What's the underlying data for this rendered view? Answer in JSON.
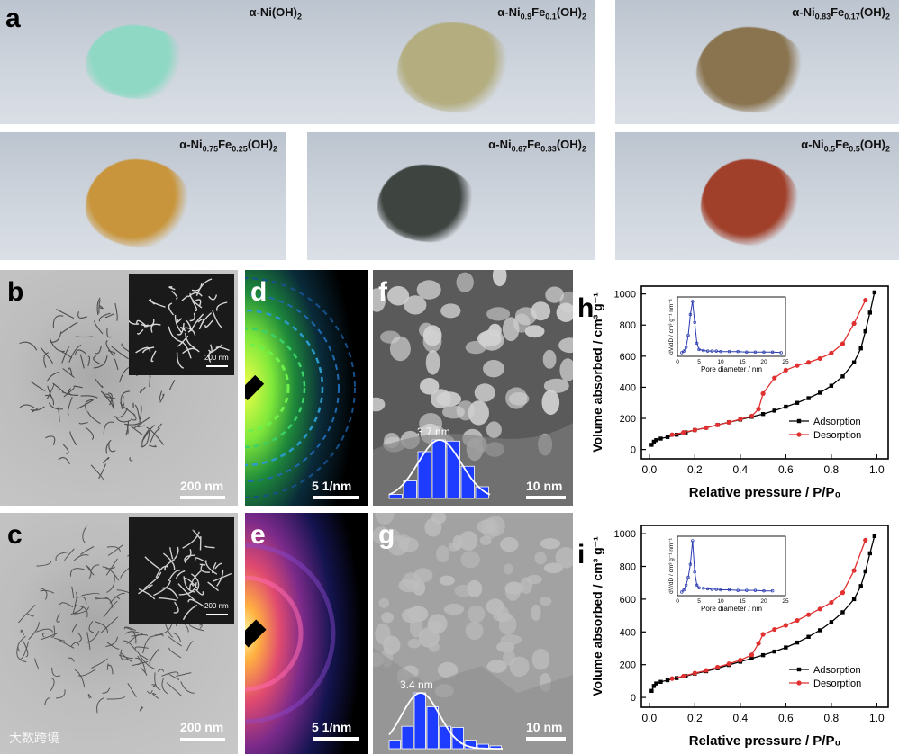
{
  "panel_a": {
    "label": "a",
    "samples": [
      {
        "formula_html": "α-Ni(OH)<sub>2</sub>",
        "color": "#8fd8c4"
      },
      {
        "formula_html": "α-Ni<sub>0.9</sub>Fe<sub>0.1</sub>(OH)<sub>2</sub>",
        "color": "#b3ad80"
      },
      {
        "formula_html": "α-Ni<sub>0.83</sub>Fe<sub>0.17</sub>(OH)<sub>2</sub>",
        "color": "#8a7450"
      },
      {
        "formula_html": "α-Ni<sub>0.75</sub>Fe<sub>0.25</sub>(OH)<sub>2</sub>",
        "color": "#c8953c"
      },
      {
        "formula_html": "α-Ni<sub>0.67</sub>Fe<sub>0.33</sub>(OH)<sub>2</sub>",
        "color": "#3e4440"
      },
      {
        "formula_html": "α-Ni<sub>0.5</sub>Fe<sub>0.5</sub>(OH)<sub>2</sub>",
        "color": "#a0402a"
      }
    ]
  },
  "panel_b": {
    "label": "b",
    "scale": "200 nm",
    "inset_scale": "200 nm"
  },
  "panel_c": {
    "label": "c",
    "scale": "200 nm",
    "inset_scale": "200 nm"
  },
  "panel_d": {
    "label": "d",
    "scale": "5 1/nm"
  },
  "panel_e": {
    "label": "e",
    "scale": "5 1/nm"
  },
  "panel_f": {
    "label": "f",
    "scale": "10 nm",
    "peak_label": "3.7 nm",
    "hist": [
      0.07,
      0.3,
      0.8,
      1.0,
      0.98,
      0.55,
      0.2
    ]
  },
  "panel_g": {
    "label": "g",
    "scale": "10 nm",
    "peak_label": "3.4 nm",
    "hist": [
      0.15,
      0.4,
      1.0,
      0.75,
      0.4,
      0.38,
      0.15,
      0.08,
      0.05
    ]
  },
  "watermark": "大数跨境",
  "chart_data": [
    {
      "panel": "h",
      "type": "line",
      "xlabel": "Relative pressure / P/P₀",
      "ylabel": "Volume absorbed / cm³ g⁻¹",
      "xlim": [
        0,
        1.0
      ],
      "ylim": [
        -60,
        1050
      ],
      "xticks": [
        "0.0",
        "0.2",
        "0.4",
        "0.6",
        "0.8",
        "1.0"
      ],
      "yticks": [
        "0",
        "200",
        "400",
        "600",
        "800",
        "1000"
      ],
      "legend_position": "bottom-right",
      "series": [
        {
          "name": "Adsorption",
          "color": "#000000",
          "x": [
            0.01,
            0.02,
            0.03,
            0.05,
            0.08,
            0.12,
            0.16,
            0.2,
            0.25,
            0.3,
            0.35,
            0.4,
            0.45,
            0.5,
            0.55,
            0.6,
            0.65,
            0.7,
            0.75,
            0.8,
            0.85,
            0.9,
            0.93,
            0.95,
            0.97,
            0.99
          ],
          "y": [
            30,
            50,
            60,
            70,
            80,
            95,
            110,
            125,
            140,
            158,
            175,
            192,
            210,
            228,
            250,
            275,
            300,
            330,
            365,
            410,
            470,
            560,
            650,
            760,
            880,
            1010
          ]
        },
        {
          "name": "Desorption",
          "color": "#e03030",
          "x": [
            0.1,
            0.15,
            0.2,
            0.25,
            0.3,
            0.35,
            0.4,
            0.45,
            0.48,
            0.5,
            0.55,
            0.6,
            0.65,
            0.7,
            0.75,
            0.8,
            0.85,
            0.9,
            0.95
          ],
          "y": [
            95,
            110,
            125,
            140,
            158,
            175,
            195,
            215,
            260,
            360,
            460,
            510,
            540,
            560,
            585,
            620,
            680,
            810,
            960
          ]
        }
      ],
      "inset": {
        "xlabel": "Pore diameter / nm",
        "ylabel": "dV/dD / cm³ g⁻¹ nm⁻¹",
        "xticks": [
          "0",
          "5",
          "10",
          "15",
          "20",
          "25"
        ],
        "x": [
          1,
          1.5,
          2,
          2.5,
          3,
          3.5,
          4,
          4.5,
          5,
          6,
          7,
          8,
          9,
          10,
          12,
          14,
          16,
          18,
          20,
          22,
          24
        ],
        "y": [
          0.02,
          0.05,
          0.12,
          0.35,
          0.75,
          1.0,
          0.6,
          0.2,
          0.08,
          0.06,
          0.05,
          0.05,
          0.05,
          0.04,
          0.04,
          0.04,
          0.03,
          0.03,
          0.03,
          0.03,
          0.02
        ]
      }
    },
    {
      "panel": "i",
      "type": "line",
      "xlabel": "Relative pressure / P/P₀",
      "ylabel": "Volume absorbed / cm³ g⁻¹",
      "xlim": [
        0,
        1.0
      ],
      "ylim": [
        -60,
        1050
      ],
      "xticks": [
        "0.0",
        "0.2",
        "0.4",
        "0.6",
        "0.8",
        "1.0"
      ],
      "yticks": [
        "0",
        "200",
        "400",
        "600",
        "800",
        "1000"
      ],
      "legend_position": "bottom-right",
      "series": [
        {
          "name": "Adsorption",
          "color": "#000000",
          "x": [
            0.01,
            0.02,
            0.03,
            0.05,
            0.08,
            0.12,
            0.16,
            0.2,
            0.25,
            0.3,
            0.35,
            0.4,
            0.45,
            0.5,
            0.55,
            0.6,
            0.65,
            0.7,
            0.75,
            0.8,
            0.85,
            0.9,
            0.93,
            0.95,
            0.97,
            0.99
          ],
          "y": [
            40,
            70,
            85,
            95,
            105,
            118,
            130,
            145,
            160,
            178,
            198,
            218,
            238,
            258,
            280,
            305,
            335,
            370,
            410,
            460,
            520,
            600,
            680,
            770,
            880,
            985
          ]
        },
        {
          "name": "Desorption",
          "color": "#e03030",
          "x": [
            0.1,
            0.15,
            0.2,
            0.25,
            0.3,
            0.35,
            0.4,
            0.45,
            0.48,
            0.5,
            0.55,
            0.6,
            0.65,
            0.7,
            0.75,
            0.8,
            0.85,
            0.9,
            0.95
          ],
          "y": [
            115,
            130,
            148,
            165,
            185,
            205,
            228,
            260,
            330,
            385,
            415,
            440,
            470,
            505,
            540,
            580,
            640,
            775,
            960
          ]
        }
      ],
      "inset": {
        "xlabel": "Pore diameter / nm",
        "ylabel": "dV/dD / cm³ g⁻¹ nm⁻¹",
        "xticks": [
          "0",
          "5",
          "10",
          "15",
          "20",
          "25"
        ],
        "x": [
          1,
          1.5,
          2,
          2.5,
          3,
          3.5,
          4,
          4.5,
          5,
          6,
          7,
          8,
          9,
          10,
          12,
          14,
          16,
          18,
          20,
          22
        ],
        "y": [
          0.02,
          0.06,
          0.15,
          0.3,
          0.55,
          1.0,
          0.4,
          0.15,
          0.1,
          0.09,
          0.08,
          0.07,
          0.07,
          0.06,
          0.06,
          0.05,
          0.05,
          0.05,
          0.04,
          0.04
        ]
      }
    }
  ]
}
